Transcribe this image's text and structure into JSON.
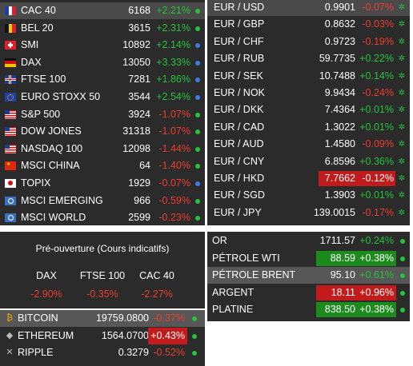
{
  "indices": [
    {
      "name": "CAC 40",
      "value": "6168",
      "change": "+2.21%",
      "dir": "pos",
      "marker": "green",
      "flag": "fr",
      "selected": true
    },
    {
      "name": "BEL 20",
      "value": "3615",
      "change": "+2.31%",
      "dir": "pos",
      "marker": "green",
      "flag": "be"
    },
    {
      "name": "SMI",
      "value": "10892",
      "change": "+2.14%",
      "dir": "pos",
      "marker": "blue",
      "flag": "ch"
    },
    {
      "name": "DAX",
      "value": "13050",
      "change": "+3.33%",
      "dir": "pos",
      "marker": "blue",
      "flag": "de"
    },
    {
      "name": "FTSE 100",
      "value": "7281",
      "change": "+1.86%",
      "dir": "pos",
      "marker": "blue",
      "flag": "uk"
    },
    {
      "name": "EURO STOXX 50",
      "value": "3544",
      "change": "+2.54%",
      "dir": "pos",
      "marker": "blue",
      "flag": "eu"
    },
    {
      "name": "S&P 500",
      "value": "3924",
      "change": "-1.07%",
      "dir": "neg",
      "marker": "green",
      "flag": "us"
    },
    {
      "name": "DOW JONES",
      "value": "31318",
      "change": "-1.07%",
      "dir": "neg",
      "marker": "green",
      "flag": "us"
    },
    {
      "name": "NASDAQ 100",
      "value": "12098",
      "change": "-1.44%",
      "dir": "neg",
      "marker": "green",
      "flag": "us"
    },
    {
      "name": "MSCI CHINA",
      "value": "64",
      "change": "-1.40%",
      "dir": "neg",
      "marker": "green",
      "flag": "cn"
    },
    {
      "name": "TOPIX",
      "value": "1929",
      "change": "-0.07%",
      "dir": "neg",
      "marker": "blue",
      "flag": "jp"
    },
    {
      "name": "MSCI EMERGING",
      "value": "966",
      "change": "-0.59%",
      "dir": "neg",
      "marker": "green",
      "flag": "un"
    },
    {
      "name": "MSCI WORLD",
      "value": "2599",
      "change": "-0.23%",
      "dir": "neg",
      "marker": "green",
      "flag": "un"
    }
  ],
  "preopen": {
    "title": "Pré-ouverture (Cours indicatifs)",
    "items": [
      {
        "name": "DAX",
        "change": "-2.90%"
      },
      {
        "name": "FTSE 100",
        "change": "-0.35%"
      },
      {
        "name": "CAC 40",
        "change": "-2.27%"
      }
    ]
  },
  "crypto": [
    {
      "name": "BITCOIN",
      "value": "19759.0800",
      "change": "-0.37%",
      "dir": "neg",
      "icon": "bitcoin-icon",
      "glyph": "₿",
      "selected": true
    },
    {
      "name": "ETHEREUM",
      "value": "1564.0700",
      "change": "+0.43%",
      "dir": "boxneg",
      "icon": "ethereum-icon",
      "glyph": "◆"
    },
    {
      "name": "RIPPLE",
      "value": "0.3279",
      "change": "-0.52%",
      "dir": "neg",
      "icon": "ripple-icon",
      "glyph": "✕"
    }
  ],
  "forex": [
    {
      "pair": "EUR / USD",
      "value": "0.9901",
      "change": "-0.07%",
      "dir": "neg",
      "selected": true
    },
    {
      "pair": "EUR / GBP",
      "value": "0.8632",
      "change": "-0.03%",
      "dir": "neg"
    },
    {
      "pair": "EUR / CHF",
      "value": "0.9723",
      "change": "-0.19%",
      "dir": "neg"
    },
    {
      "pair": "EUR / RUB",
      "value": "59.7735",
      "change": "+0.22%",
      "dir": "pos"
    },
    {
      "pair": "EUR / SEK",
      "value": "10.7488",
      "change": "+0.14%",
      "dir": "pos"
    },
    {
      "pair": "EUR / NOK",
      "value": "9.9434",
      "change": "-0.24%",
      "dir": "neg"
    },
    {
      "pair": "EUR / DKK",
      "value": "7.4364",
      "change": "+0.01%",
      "dir": "pos"
    },
    {
      "pair": "EUR / CAD",
      "value": "1.3022",
      "change": "+0.01%",
      "dir": "pos"
    },
    {
      "pair": "EUR / AUD",
      "value": "1.4580",
      "change": "-0.09%",
      "dir": "neg"
    },
    {
      "pair": "EUR / CNY",
      "value": "6.8596",
      "change": "+0.36%",
      "dir": "pos"
    },
    {
      "pair": "EUR / HKD",
      "value": "7.7662",
      "change": "-0.12%",
      "dir": "boxneg"
    },
    {
      "pair": "EUR / SGD",
      "value": "1.3903",
      "change": "+0.01%",
      "dir": "pos"
    },
    {
      "pair": "EUR / JPY",
      "value": "139.0015",
      "change": "-0.17%",
      "dir": "neg"
    }
  ],
  "commodities": [
    {
      "name": "OR",
      "value": "1711.57",
      "change": "+0.24%",
      "dir": "pos"
    },
    {
      "name": "PÉTROLE WTI",
      "value": "88.59",
      "change": "+0.38%",
      "dir": "boxpos"
    },
    {
      "name": "PÉTROLE BRENT",
      "value": "95.10",
      "change": "+0.61%",
      "dir": "pos",
      "selected": true
    },
    {
      "name": "ARGENT",
      "value": "18.11",
      "change": "+0.96%",
      "dir": "boxneg"
    },
    {
      "name": "PLATINE",
      "value": "838.50",
      "change": "+0.38%",
      "dir": "boxpos"
    }
  ],
  "colors": {
    "panel": "#2b2b2b",
    "positive": "#25c23a",
    "negative": "#ef3b2e",
    "marker_blue": "#3a7fe0"
  }
}
